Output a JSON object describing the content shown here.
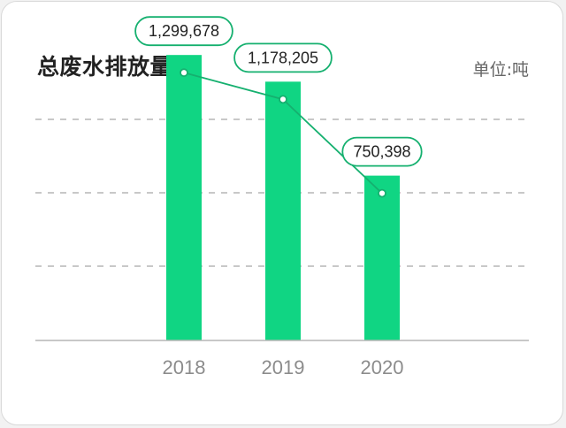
{
  "header": {
    "title": "总废水排放量",
    "unit": "单位:吨"
  },
  "colors": {
    "bar": "#10d583",
    "line": "#15b06f",
    "grid": "#b5b5b5",
    "axis": "#b5b5b5"
  },
  "chart_data": {
    "type": "bar",
    "categories": [
      "2018",
      "2019",
      "2020"
    ],
    "series": [
      {
        "values": [
          1299678,
          1178205,
          750398
        ]
      }
    ],
    "data_labels": [
      "1,299,678",
      "1,178,205",
      "750,398"
    ],
    "overlay": "line",
    "ylim": [
      0,
      1550000
    ],
    "grid": true,
    "title": "总废水排放量",
    "unit_label": "单位:吨"
  }
}
